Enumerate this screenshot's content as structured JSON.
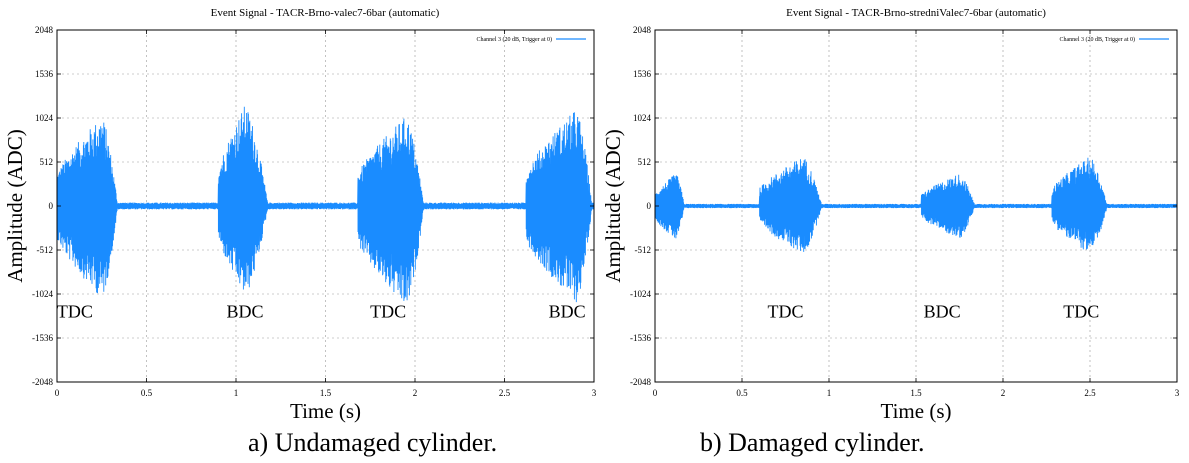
{
  "colors": {
    "signal": "#1a8cff",
    "grid": "#9a9a9a",
    "axis": "#000000"
  },
  "captions": {
    "left": "a) Undamaged cylinder.",
    "right": "b) Damaged cylinder."
  },
  "chart_data": [
    {
      "type": "line",
      "title": "Event Signal - TACR-Brno-valec7-6bar (automatic)",
      "xlabel": "Time (s)",
      "ylabel": "Amplitude (ADC)",
      "xlim": [
        0,
        3
      ],
      "ylim": [
        -2048,
        2048
      ],
      "xticks": [
        0,
        0.5,
        1,
        1.5,
        2,
        2.5,
        3
      ],
      "xtick_labels": [
        "0",
        "0.5",
        "1",
        "1.5",
        "2",
        "2.5",
        "3"
      ],
      "yticks": [
        -2048,
        -1536,
        -1024,
        -512,
        0,
        512,
        1024,
        1536,
        2048
      ],
      "ytick_labels": [
        "-2048",
        "-1536",
        "-1024",
        "-512",
        "0",
        "512",
        "1024",
        "1536",
        "2048"
      ],
      "grid": true,
      "legend": "top-right",
      "series": [
        {
          "name": "Channel 3 (20 dB, Trigger at 0)",
          "bursts": [
            {
              "start": 0.0,
              "peak": 0.25,
              "end": 0.34,
              "amp_pos": 1050,
              "amp_neg": -1080
            },
            {
              "start": 0.9,
              "peak": 1.05,
              "end": 1.18,
              "amp_pos": 1180,
              "amp_neg": -1050
            },
            {
              "start": 1.68,
              "peak": 1.95,
              "end": 2.05,
              "amp_pos": 1050,
              "amp_neg": -1200
            },
            {
              "start": 2.62,
              "peak": 2.9,
              "end": 2.99,
              "amp_pos": 1130,
              "amp_neg": -1130
            }
          ],
          "baseline_amp": 40
        }
      ],
      "annotations": [
        {
          "text": "TDC",
          "x": 0.1,
          "y": -1300
        },
        {
          "text": "BDC",
          "x": 1.05,
          "y": -1300
        },
        {
          "text": "TDC",
          "x": 1.85,
          "y": -1300
        },
        {
          "text": "BDC",
          "x": 2.85,
          "y": -1300
        }
      ]
    },
    {
      "type": "line",
      "title": "Event Signal - TACR-Brno-stredniValec7-6bar (automatic)",
      "xlabel": "Time (s)",
      "ylabel": "Amplitude (ADC)",
      "xlim": [
        0,
        3
      ],
      "ylim": [
        -2048,
        2048
      ],
      "xticks": [
        0,
        0.5,
        1,
        1.5,
        2,
        2.5,
        3
      ],
      "xtick_labels": [
        "0",
        "0.5",
        "1",
        "1.5",
        "2",
        "2.5",
        "3"
      ],
      "yticks": [
        -2048,
        -1536,
        -1024,
        -512,
        0,
        512,
        1024,
        1536,
        2048
      ],
      "ytick_labels": [
        "-2048",
        "-1536",
        "-1024",
        "-512",
        "0",
        "512",
        "1024",
        "1536",
        "2048"
      ],
      "grid": true,
      "legend": "top-right",
      "series": [
        {
          "name": "Channel 3 (20 dB, Trigger at 0)",
          "bursts": [
            {
              "start": 0.0,
              "peak": 0.12,
              "end": 0.17,
              "amp_pos": 380,
              "amp_neg": -400
            },
            {
              "start": 0.6,
              "peak": 0.85,
              "end": 0.96,
              "amp_pos": 580,
              "amp_neg": -560
            },
            {
              "start": 1.53,
              "peak": 1.75,
              "end": 1.84,
              "amp_pos": 380,
              "amp_neg": -380
            },
            {
              "start": 2.28,
              "peak": 2.5,
              "end": 2.6,
              "amp_pos": 580,
              "amp_neg": -560
            }
          ],
          "baseline_amp": 25
        }
      ],
      "annotations": [
        {
          "text": "TDC",
          "x": 0.75,
          "y": -1300
        },
        {
          "text": "BDC",
          "x": 1.65,
          "y": -1300
        },
        {
          "text": "TDC",
          "x": 2.45,
          "y": -1300
        }
      ]
    }
  ]
}
